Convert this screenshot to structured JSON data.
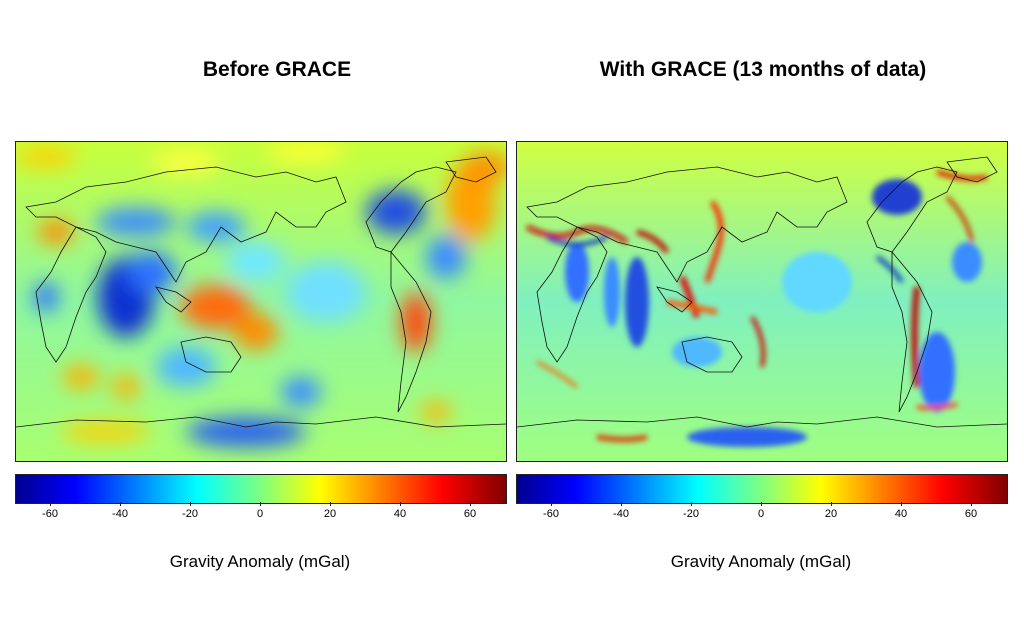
{
  "panels": [
    {
      "title": "Before GRACE",
      "colorbar": {
        "min": -70,
        "max": 70,
        "ticks": [
          "-60",
          "-40",
          "-20",
          "0",
          "20",
          "40",
          "60"
        ],
        "label": "Gravity Anomaly (mGal)"
      }
    },
    {
      "title": "With GRACE (13 months of data)",
      "colorbar": {
        "min": -70,
        "max": 70,
        "ticks": [
          "-60",
          "-40",
          "-20",
          "0",
          "20",
          "40",
          "60"
        ],
        "label": "Gravity Anomaly (mGal)"
      }
    }
  ],
  "colormap": "jet",
  "colors": {
    "low": "#00008f",
    "mid_low": "#00ffff",
    "mid": "#9cff60",
    "mid_high": "#ffff00",
    "high": "#800000"
  }
}
